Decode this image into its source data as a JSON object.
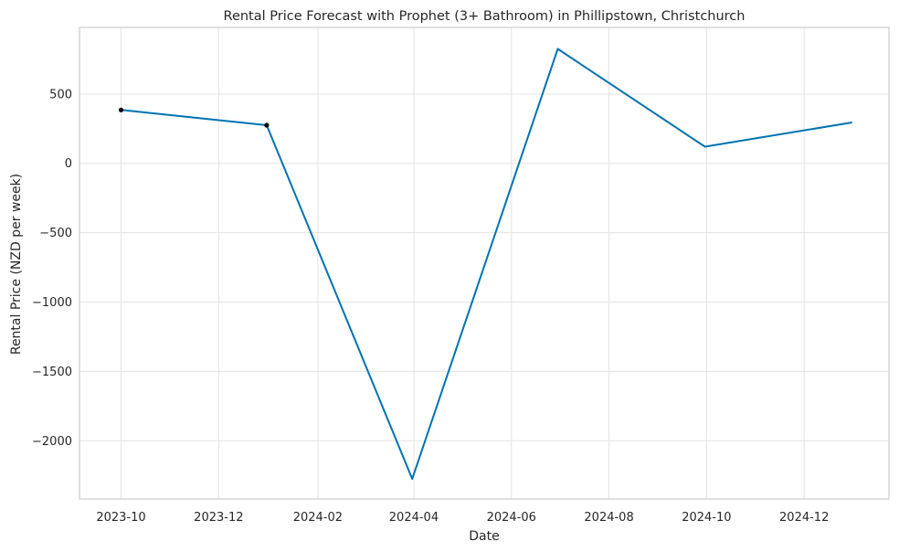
{
  "chart_data": {
    "type": "line",
    "title": "Rental Price Forecast with Prophet (3+ Bathroom) in Phillipstown, Christchurch",
    "xlabel": "Date",
    "ylabel": "Rental Price (NZD per week)",
    "x_axis_type": "date",
    "xlim": [
      "2023-09-05",
      "2025-01-23"
    ],
    "ylim": [
      -2420,
      980
    ],
    "x_ticks": [
      "2023-10-01",
      "2023-12-01",
      "2024-02-01",
      "2024-04-01",
      "2024-06-01",
      "2024-08-01",
      "2024-10-01",
      "2024-12-01"
    ],
    "x_tick_labels": [
      "2023-10",
      "2023-12",
      "2024-02",
      "2024-04",
      "2024-06",
      "2024-08",
      "2024-10",
      "2024-12"
    ],
    "y_ticks": [
      500,
      0,
      -500,
      -1000,
      -1500,
      -2000
    ],
    "y_tick_labels": [
      "500",
      "0",
      "−500",
      "−1000",
      "−1500",
      "−2000"
    ],
    "grid": true,
    "legend": "none",
    "series": [
      {
        "kind": "forecast",
        "color": "#0072b2",
        "x": [
          "2023-10-01",
          "2023-12-31",
          "2024-03-31",
          "2024-06-30",
          "2024-09-30",
          "2024-12-31"
        ],
        "y": [
          385,
          275,
          -2275,
          825,
          120,
          295
        ]
      },
      {
        "kind": "observed",
        "color": "#000000",
        "x": [
          "2023-10-01",
          "2023-12-31"
        ],
        "y": [
          385,
          275
        ]
      }
    ]
  }
}
